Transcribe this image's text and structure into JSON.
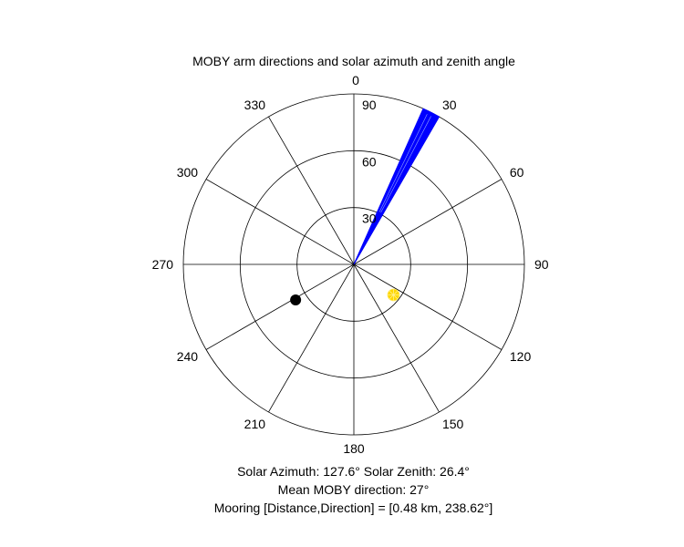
{
  "chart_data": {
    "type": "polar",
    "title": "MOBY arm directions and solar azimuth and zenith angle",
    "theta_ticks": [
      "0",
      "30",
      "60",
      "90",
      "120",
      "150",
      "180",
      "210",
      "240",
      "270",
      "300",
      "330"
    ],
    "r_ticks": [
      "30",
      "60",
      "90"
    ],
    "r_max": 90,
    "theta_zero": "top",
    "theta_direction": "clockwise",
    "moby_arms": {
      "color": "#0000ff",
      "direction_range_deg": [
        24,
        30
      ],
      "length": 90
    },
    "sun": {
      "azimuth_deg": 127.6,
      "zenith_deg": 26.4,
      "color": "#ffd700",
      "marker": "sun-dot"
    },
    "mooring": {
      "direction_deg": 238.62,
      "r": 36,
      "color": "#000000",
      "marker": "dot"
    },
    "grid": true
  },
  "footer": {
    "line1": "Solar Azimuth: 127.6°   Solar Zenith: 26.4°",
    "line2": "Mean MOBY direction: 27°",
    "line3": "Mooring [Distance,Direction] = [0.48 km, 238.62°]"
  }
}
